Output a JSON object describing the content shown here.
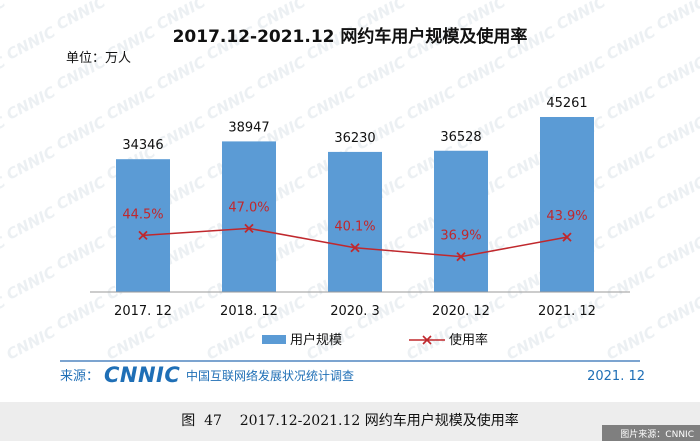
{
  "chart_data": {
    "type": "bar",
    "title": "2017.12-2021.12 网约车用户规模及使用率",
    "unit_label": "单位：万人",
    "categories": [
      "2017. 12",
      "2018. 12",
      "2020. 3",
      "2020. 12",
      "2021. 12"
    ],
    "series": [
      {
        "name": "用户规模",
        "kind": "bar",
        "color": "#5b9bd5",
        "values": [
          34346,
          38947,
          36230,
          36528,
          45261
        ],
        "labels": [
          "34346",
          "38947",
          "36230",
          "36528",
          "45261"
        ]
      },
      {
        "name": "使用率",
        "kind": "line",
        "color": "#c0282d",
        "values": [
          44.5,
          47.0,
          40.1,
          36.9,
          43.9
        ],
        "labels": [
          "44.5%",
          "47.0%",
          "40.1%",
          "36.9%",
          "43.9%"
        ]
      }
    ],
    "legend_position": "bottom",
    "grid": false
  },
  "footer": {
    "source_label": "来源：",
    "logo_text": "CNNIC",
    "logo_subtitle": "中国互联网络发展状况统计调查",
    "date": "2021. 12"
  },
  "caption": "图  47    2017.12-2021.12 网约车用户规模及使用率",
  "credit": "图片来源：CNNIC",
  "watermark_text": "CNNIC",
  "colors": {
    "bar": "#5b9bd5",
    "line": "#c0282d",
    "rule": "#2e6db4",
    "caption_bg": "#ededed",
    "credit_bg": "#7f7f7f",
    "logo_blue": "#1f6fb6",
    "logo_red": "#d71f26"
  }
}
